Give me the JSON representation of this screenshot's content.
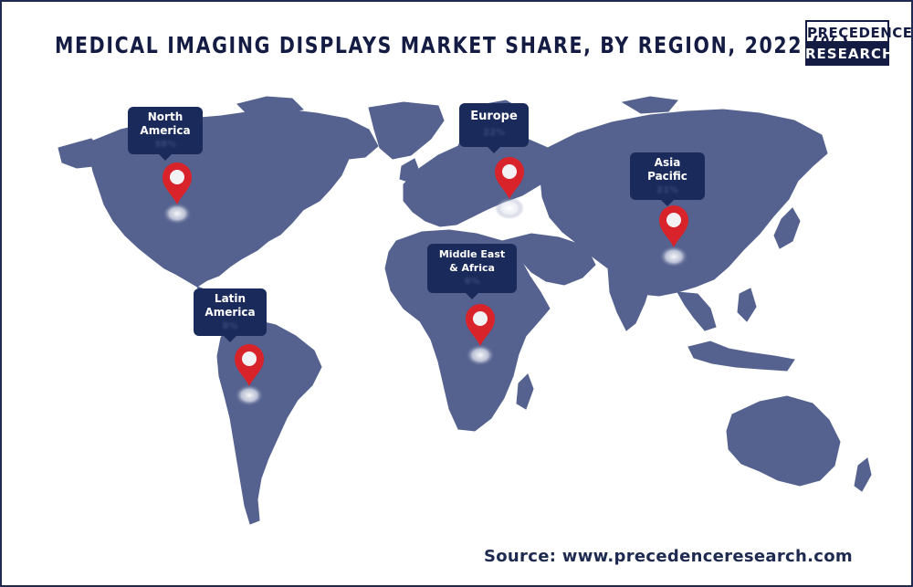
{
  "title": "MEDICAL IMAGING DISPLAYS MARKET SHARE, BY REGION, 2022 (%)",
  "logo": {
    "line1": "PRECEDENCE",
    "line2": "RESEARCH"
  },
  "regions": [
    {
      "name": "North America",
      "line1": "North",
      "line2": "America",
      "value": "38%"
    },
    {
      "name": "Europe",
      "line1": "Europe",
      "line2": "",
      "value": "22%"
    },
    {
      "name": "Asia Pacific",
      "line1": "Asia",
      "line2": "Pacific",
      "value": "21%"
    },
    {
      "name": "Middle East & Africa",
      "line1": "Middle East",
      "line2": "& Africa",
      "value": "6%"
    },
    {
      "name": "Latin America",
      "line1": "Latin",
      "line2": "America",
      "value": "8%"
    }
  ],
  "source": "Source: www.precedenceresearch.com",
  "colors": {
    "land": "#55628f",
    "pin": "#d8232a",
    "label_bg": "#1a2a5a",
    "title": "#141c44"
  }
}
